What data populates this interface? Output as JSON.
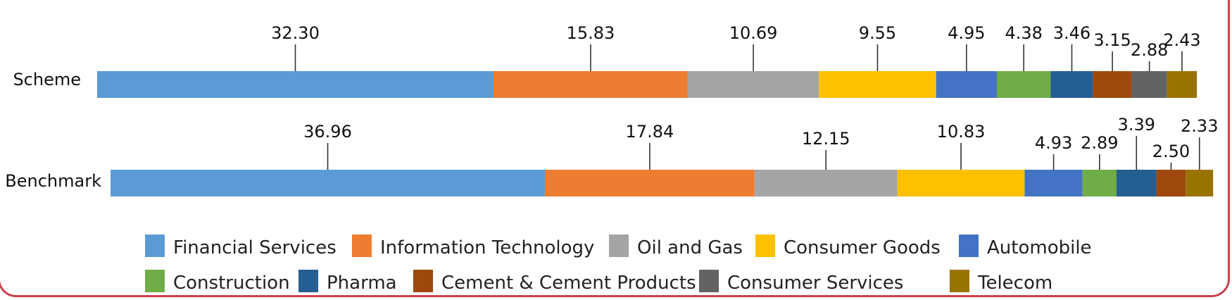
{
  "chart_data": {
    "type": "bar",
    "orientation": "horizontal",
    "stacked": true,
    "categories": [
      "Scheme",
      "Benchmark"
    ],
    "series": [
      {
        "name": "Financial Services",
        "color": "#5B9BD5",
        "values": [
          32.3,
          36.96
        ],
        "labels": [
          "32.30",
          "36.96"
        ]
      },
      {
        "name": "Information Technology",
        "color": "#ED7D31",
        "values": [
          15.83,
          17.84
        ],
        "labels": [
          "15.83",
          "17.84"
        ]
      },
      {
        "name": "Oil and Gas",
        "color": "#A5A5A5",
        "values": [
          10.69,
          12.15
        ],
        "labels": [
          "10.69",
          "12.15"
        ]
      },
      {
        "name": "Consumer Goods",
        "color": "#FFC000",
        "values": [
          9.55,
          10.83
        ],
        "labels": [
          "9.55",
          "10.83"
        ]
      },
      {
        "name": "Automobile",
        "color": "#4472C4",
        "values": [
          4.95,
          4.93
        ],
        "labels": [
          "4.95",
          "4.93"
        ]
      },
      {
        "name": "Construction",
        "color": "#70AD47",
        "values": [
          4.38,
          2.89
        ],
        "labels": [
          "4.38",
          "2.89"
        ]
      },
      {
        "name": "Pharma",
        "color": "#255E91",
        "values": [
          3.46,
          3.39
        ],
        "labels": [
          "3.46",
          "3.39"
        ]
      },
      {
        "name": "Cement & Cement Products",
        "color": "#9E480E",
        "values": [
          3.15,
          2.5
        ],
        "labels": [
          "3.15",
          "2.50"
        ]
      },
      {
        "name": "Consumer Services",
        "color": "#636363",
        "values": [
          2.88,
          null
        ],
        "labels": [
          "2.88",
          ""
        ]
      },
      {
        "name": "Telecom",
        "color": "#997300",
        "values": [
          2.43,
          2.33
        ],
        "labels": [
          "2.43",
          "2.33"
        ]
      }
    ],
    "legend_position": "bottom",
    "grid": false
  }
}
